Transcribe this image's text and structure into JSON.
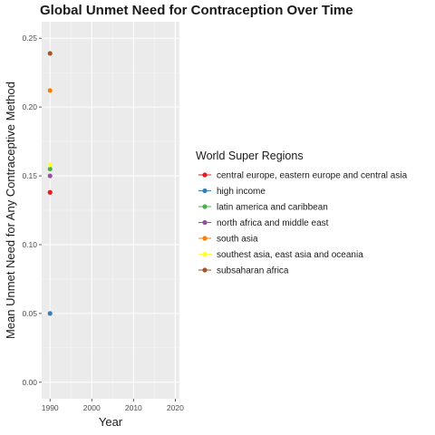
{
  "chart_data": {
    "type": "scatter",
    "title": "Global Unmet Need for Contraception Over Time",
    "xlabel": "Year",
    "ylabel": "Mean Unmet Need for Any Contraceptive Method",
    "xlim": [
      1988,
      2021
    ],
    "ylim": [
      -0.012,
      0.262
    ],
    "x_ticks": [
      1990,
      2000,
      2010,
      2020
    ],
    "y_ticks": [
      0.0,
      0.05,
      0.1,
      0.15,
      0.2,
      0.25
    ],
    "grid": true,
    "legend_position": "right",
    "legend_title": "World Super Regions",
    "series": [
      {
        "name": "central europe, eastern europe and central asia",
        "color": "#e41a1c",
        "points": [
          {
            "x": 1990,
            "y": 0.138
          }
        ]
      },
      {
        "name": "high income",
        "color": "#377eb8",
        "points": [
          {
            "x": 1990,
            "y": 0.05
          }
        ]
      },
      {
        "name": "latin america and caribbean",
        "color": "#4daf4a",
        "points": [
          {
            "x": 1990,
            "y": 0.155
          }
        ]
      },
      {
        "name": "north africa and middle east",
        "color": "#984ea3",
        "points": [
          {
            "x": 1990,
            "y": 0.15
          }
        ]
      },
      {
        "name": "south asia",
        "color": "#ff7f00",
        "points": [
          {
            "x": 1990,
            "y": 0.212
          }
        ]
      },
      {
        "name": "southest asia, east asia and oceania",
        "color": "#ffff33",
        "points": [
          {
            "x": 1990,
            "y": 0.158
          }
        ]
      },
      {
        "name": "subsaharan africa",
        "color": "#a65628",
        "points": [
          {
            "x": 1990,
            "y": 0.239
          }
        ]
      }
    ]
  }
}
